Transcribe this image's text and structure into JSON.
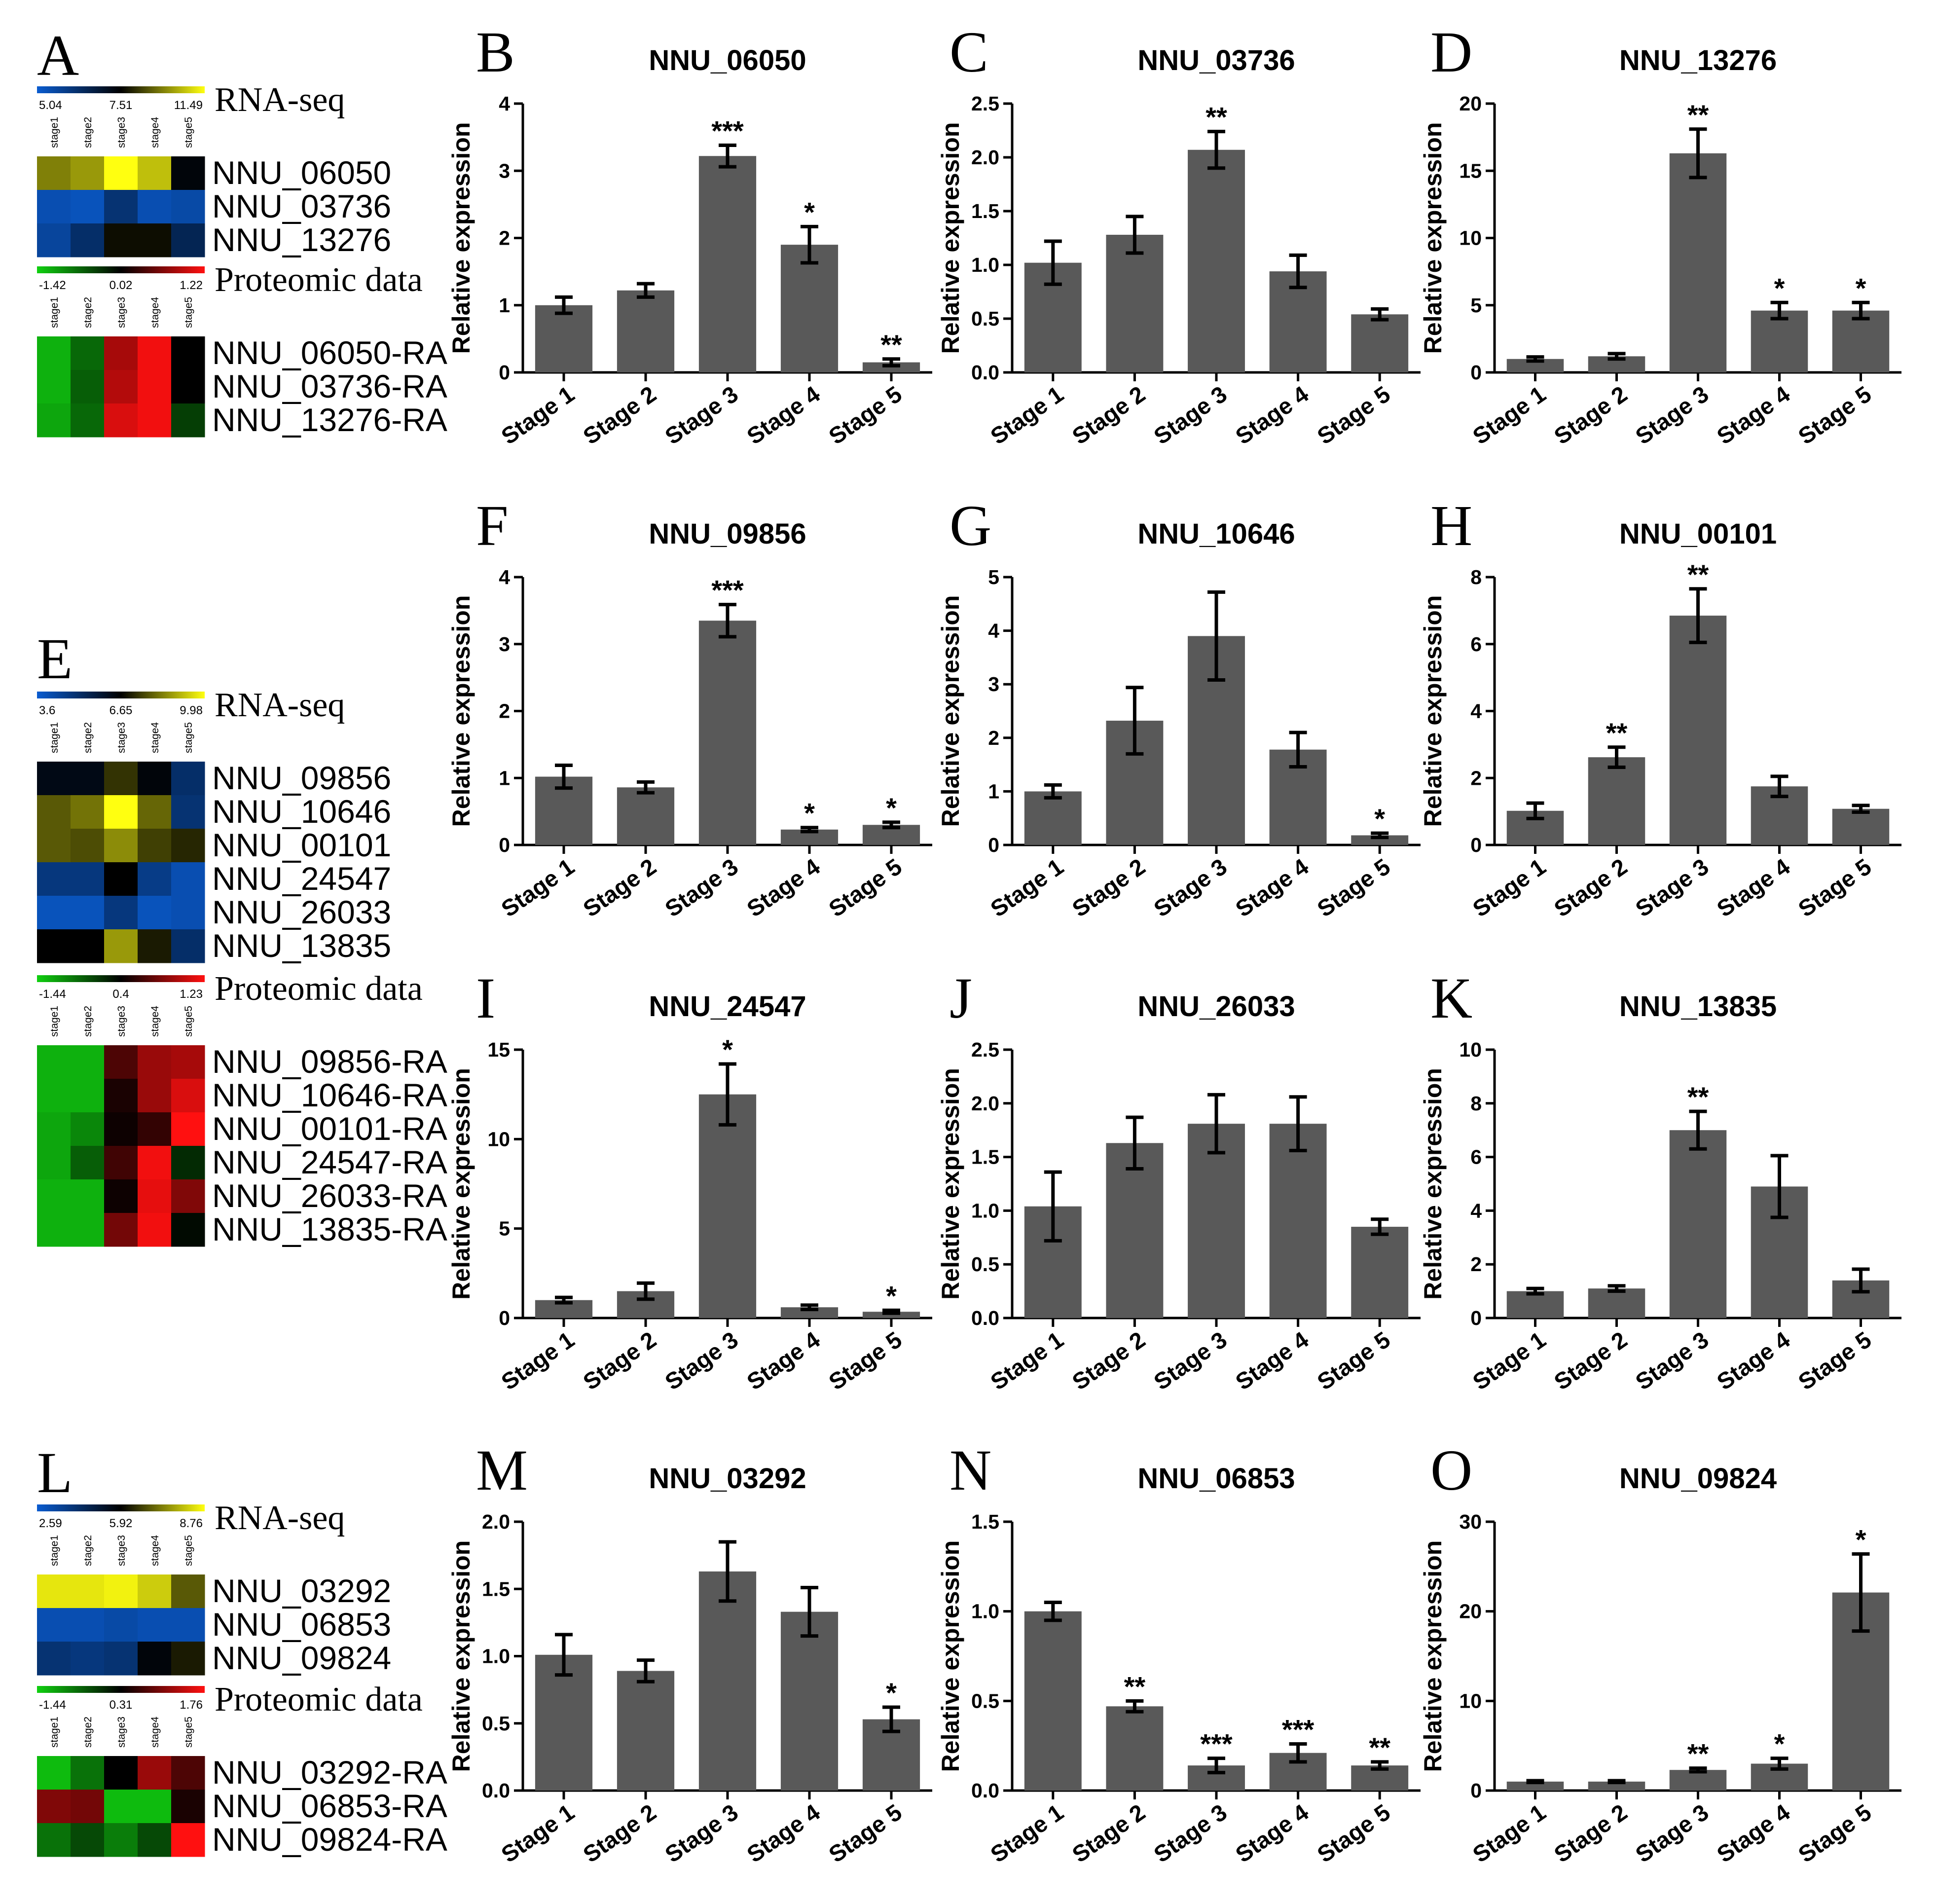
{
  "colors": {
    "bar": "#595959",
    "rna_low": "#0a5cd0",
    "rna_mid": "#000000",
    "rna_high": "#ffff10",
    "prot_low": "#10d010",
    "prot_mid": "#000000",
    "prot_high": "#ff1010"
  },
  "heatmaps": [
    {
      "id": "A",
      "rna": {
        "title": "RNA-seq",
        "scale": [
          "5.04",
          "7.51",
          "11.49"
        ],
        "cols": [
          "stage1",
          "stage2",
          "stage3",
          "stage4",
          "stage5"
        ],
        "rows": [
          "NNU_06050",
          "NNU_03736",
          "NNU_13276"
        ],
        "values": [
          [
            0.5,
            0.6,
            1.0,
            0.75,
            -0.05
          ],
          [
            -0.85,
            -0.9,
            -0.55,
            -0.85,
            -0.8
          ],
          [
            -0.75,
            -0.5,
            0.05,
            0.05,
            -0.4
          ]
        ]
      },
      "prot": {
        "title": "Proteomic data",
        "scale": [
          "-1.42",
          "0.02",
          "1.22"
        ],
        "cols": [
          "stage1",
          "stage2",
          "stage3",
          "stage4",
          "stage5"
        ],
        "rows": [
          "NNU_06050-RA",
          "NNU_03736-RA",
          "NNU_13276-RA"
        ],
        "values": [
          [
            -0.85,
            -0.5,
            0.65,
            0.95,
            0.0
          ],
          [
            -0.85,
            -0.45,
            0.7,
            0.95,
            0.0
          ],
          [
            -0.8,
            -0.5,
            0.85,
            0.95,
            -0.3
          ]
        ]
      }
    },
    {
      "id": "E",
      "rna": {
        "title": "RNA-seq",
        "scale": [
          "3.6",
          "6.65",
          "9.98"
        ],
        "cols": [
          "stage1",
          "stage2",
          "stage3",
          "stage4",
          "stage5"
        ],
        "rows": [
          "NNU_09856",
          "NNU_10646",
          "NNU_00101",
          "NNU_24547",
          "NNU_26033",
          "NNU_13835"
        ],
        "values": [
          [
            -0.1,
            -0.1,
            0.2,
            -0.05,
            -0.5
          ],
          [
            0.35,
            0.45,
            1.0,
            0.4,
            -0.55
          ],
          [
            0.35,
            0.3,
            0.55,
            0.25,
            0.15
          ],
          [
            -0.6,
            -0.6,
            0.0,
            -0.65,
            -0.85
          ],
          [
            -0.9,
            -0.9,
            -0.6,
            -0.9,
            -0.85
          ],
          [
            0.0,
            0.0,
            0.6,
            0.1,
            -0.5
          ]
        ]
      },
      "prot": {
        "title": "Proteomic data",
        "scale": [
          "-1.44",
          "0.4",
          "1.23"
        ],
        "cols": [
          "stage1",
          "stage2",
          "stage3",
          "stage4",
          "stage5"
        ],
        "rows": [
          "NNU_09856-RA",
          "NNU_10646-RA",
          "NNU_00101-RA",
          "NNU_24547-RA",
          "NNU_26033-RA",
          "NNU_13835-RA"
        ],
        "values": [
          [
            -0.85,
            -0.85,
            0.3,
            0.6,
            0.65
          ],
          [
            -0.85,
            -0.85,
            0.1,
            0.6,
            0.85
          ],
          [
            -0.8,
            -0.65,
            0.05,
            0.2,
            1.0
          ],
          [
            -0.8,
            -0.45,
            0.25,
            0.95,
            -0.2
          ],
          [
            -0.85,
            -0.85,
            0.05,
            0.9,
            0.5
          ],
          [
            -0.85,
            -0.85,
            0.45,
            0.95,
            -0.05
          ]
        ]
      }
    },
    {
      "id": "L",
      "rna": {
        "title": "RNA-seq",
        "scale": [
          "2.59",
          "5.92",
          "8.76"
        ],
        "cols": [
          "stage1",
          "stage2",
          "stage3",
          "stage4",
          "stage5"
        ],
        "rows": [
          "NNU_03292",
          "NNU_06853",
          "NNU_09824"
        ],
        "values": [
          [
            0.9,
            0.9,
            0.95,
            0.8,
            0.35
          ],
          [
            -0.85,
            -0.85,
            -0.8,
            -0.85,
            -0.85
          ],
          [
            -0.55,
            -0.6,
            -0.55,
            -0.05,
            0.1
          ]
        ]
      },
      "prot": {
        "title": "Proteomic data",
        "scale": [
          "-1.44",
          "0.31",
          "1.76"
        ],
        "cols": [
          "stage1",
          "stage2",
          "stage3",
          "stage4",
          "stage5"
        ],
        "rows": [
          "NNU_03292-RA",
          "NNU_06853-RA",
          "NNU_09824-RA"
        ],
        "values": [
          [
            -0.9,
            -0.55,
            0.0,
            0.6,
            0.3
          ],
          [
            0.5,
            0.45,
            -0.9,
            -0.9,
            0.1
          ],
          [
            -0.55,
            -0.35,
            -0.6,
            -0.35,
            1.0
          ]
        ]
      }
    }
  ],
  "chart_data": [
    {
      "id": "B",
      "type": "bar",
      "title": "NNU_06050",
      "ylabel": "Relative expression",
      "categories": [
        "Stage 1",
        "Stage 2",
        "Stage 3",
        "Stage 4",
        "Stage 5"
      ],
      "values": [
        1.0,
        1.22,
        3.22,
        1.9,
        0.15
      ],
      "errors": [
        0.12,
        0.1,
        0.16,
        0.27,
        0.05
      ],
      "significance": [
        "",
        "",
        "***",
        "*",
        "**"
      ],
      "ylim": [
        0,
        4
      ],
      "yticks": [
        "0",
        "1",
        "2",
        "3",
        "4"
      ]
    },
    {
      "id": "C",
      "type": "bar",
      "title": "NNU_03736",
      "ylabel": "Relative expression",
      "categories": [
        "Stage 1",
        "Stage 2",
        "Stage 3",
        "Stage 4",
        "Stage 5"
      ],
      "values": [
        1.02,
        1.28,
        2.07,
        0.94,
        0.54
      ],
      "errors": [
        0.2,
        0.17,
        0.17,
        0.15,
        0.05
      ],
      "significance": [
        "",
        "",
        "**",
        "",
        ""
      ],
      "ylim": [
        0,
        2.5
      ],
      "yticks": [
        "0.0",
        "0.5",
        "1.0",
        "1.5",
        "2.0",
        "2.5"
      ]
    },
    {
      "id": "D",
      "type": "bar",
      "title": "NNU_13276",
      "ylabel": "Relative expression",
      "categories": [
        "Stage 1",
        "Stage 2",
        "Stage 3",
        "Stage 4",
        "Stage 5"
      ],
      "values": [
        1.0,
        1.2,
        16.3,
        4.6,
        4.6
      ],
      "errors": [
        0.15,
        0.2,
        1.8,
        0.6,
        0.6
      ],
      "significance": [
        "",
        "",
        "**",
        "*",
        "*"
      ],
      "ylim": [
        0,
        20
      ],
      "yticks": [
        "0",
        "5",
        "10",
        "15",
        "20"
      ]
    },
    {
      "id": "F",
      "type": "bar",
      "title": "NNU_09856",
      "ylabel": "Relative expression",
      "categories": [
        "Stage 1",
        "Stage 2",
        "Stage 3",
        "Stage 4",
        "Stage 5"
      ],
      "values": [
        1.02,
        0.86,
        3.35,
        0.23,
        0.3
      ],
      "errors": [
        0.17,
        0.08,
        0.24,
        0.03,
        0.04
      ],
      "significance": [
        "",
        "",
        "***",
        "*",
        "*"
      ],
      "ylim": [
        0,
        4
      ],
      "yticks": [
        "0",
        "1",
        "2",
        "3",
        "4"
      ]
    },
    {
      "id": "G",
      "type": "bar",
      "title": "NNU_10646",
      "ylabel": "Relative expression",
      "categories": [
        "Stage 1",
        "Stage 2",
        "Stage 3",
        "Stage 4",
        "Stage 5"
      ],
      "values": [
        1.0,
        2.32,
        3.9,
        1.78,
        0.18
      ],
      "errors": [
        0.12,
        0.62,
        0.82,
        0.32,
        0.04
      ],
      "significance": [
        "",
        "",
        "",
        "",
        "*"
      ],
      "ylim": [
        0,
        5
      ],
      "yticks": [
        "0",
        "1",
        "2",
        "3",
        "4",
        "5"
      ]
    },
    {
      "id": "H",
      "type": "bar",
      "title": "NNU_00101",
      "ylabel": "Relative expression",
      "categories": [
        "Stage 1",
        "Stage 2",
        "Stage 3",
        "Stage 4",
        "Stage 5"
      ],
      "values": [
        1.02,
        2.62,
        6.85,
        1.75,
        1.08
      ],
      "errors": [
        0.23,
        0.3,
        0.8,
        0.3,
        0.1
      ],
      "significance": [
        "",
        "**",
        "**",
        "",
        ""
      ],
      "ylim": [
        0,
        8
      ],
      "yticks": [
        "0",
        "2",
        "4",
        "6",
        "8"
      ]
    },
    {
      "id": "I",
      "type": "bar",
      "title": "NNU_24547",
      "ylabel": "Relative expression",
      "categories": [
        "Stage 1",
        "Stage 2",
        "Stage 3",
        "Stage 4",
        "Stage 5"
      ],
      "values": [
        1.0,
        1.5,
        12.5,
        0.6,
        0.35
      ],
      "errors": [
        0.15,
        0.45,
        1.7,
        0.12,
        0.08
      ],
      "significance": [
        "",
        "",
        "*",
        "",
        "*"
      ],
      "ylim": [
        0,
        15
      ],
      "yticks": [
        "0",
        "5",
        "10",
        "15"
      ]
    },
    {
      "id": "J",
      "type": "bar",
      "title": "NNU_26033",
      "ylabel": "Relative expression",
      "categories": [
        "Stage 1",
        "Stage 2",
        "Stage 3",
        "Stage 4",
        "Stage 5"
      ],
      "values": [
        1.04,
        1.63,
        1.81,
        1.81,
        0.85
      ],
      "errors": [
        0.32,
        0.24,
        0.27,
        0.25,
        0.07
      ],
      "significance": [
        "",
        "",
        "",
        "",
        ""
      ],
      "ylim": [
        0,
        2.5
      ],
      "yticks": [
        "0.0",
        "0.5",
        "1.0",
        "1.5",
        "2.0",
        "2.5"
      ]
    },
    {
      "id": "K",
      "type": "bar",
      "title": "NNU_13835",
      "ylabel": "Relative expression",
      "categories": [
        "Stage 1",
        "Stage 2",
        "Stage 3",
        "Stage 4",
        "Stage 5"
      ],
      "values": [
        1.0,
        1.1,
        7.0,
        4.9,
        1.4
      ],
      "errors": [
        0.1,
        0.1,
        0.7,
        1.15,
        0.42
      ],
      "significance": [
        "",
        "",
        "**",
        "",
        ""
      ],
      "ylim": [
        0,
        10
      ],
      "yticks": [
        "0",
        "2",
        "4",
        "6",
        "8",
        "10"
      ]
    },
    {
      "id": "M",
      "type": "bar",
      "title": "NNU_03292",
      "ylabel": "Relative expression",
      "categories": [
        "Stage 1",
        "Stage 2",
        "Stage 3",
        "Stage 4",
        "Stage 5"
      ],
      "values": [
        1.01,
        0.89,
        1.63,
        1.33,
        0.53
      ],
      "errors": [
        0.15,
        0.08,
        0.22,
        0.18,
        0.09
      ],
      "significance": [
        "",
        "",
        "",
        "",
        "*"
      ],
      "ylim": [
        0,
        2.0
      ],
      "yticks": [
        "0.0",
        "0.5",
        "1.0",
        "1.5",
        "2.0"
      ]
    },
    {
      "id": "N",
      "type": "bar",
      "title": "NNU_06853",
      "ylabel": "Relative expression",
      "categories": [
        "Stage 1",
        "Stage 2",
        "Stage 3",
        "Stage 4",
        "Stage 5"
      ],
      "values": [
        1.0,
        0.47,
        0.14,
        0.21,
        0.14
      ],
      "errors": [
        0.05,
        0.03,
        0.04,
        0.05,
        0.02
      ],
      "significance": [
        "",
        "**",
        "***",
        "***",
        "**"
      ],
      "ylim": [
        0,
        1.5
      ],
      "yticks": [
        "0.0",
        "0.5",
        "1.0",
        "1.5"
      ]
    },
    {
      "id": "O",
      "type": "bar",
      "title": "NNU_09824",
      "ylabel": "Relative expression",
      "categories": [
        "Stage 1",
        "Stage 2",
        "Stage 3",
        "Stage 4",
        "Stage 5"
      ],
      "values": [
        1.0,
        1.0,
        2.3,
        3.0,
        22.1
      ],
      "errors": [
        0.1,
        0.1,
        0.2,
        0.6,
        4.3
      ],
      "significance": [
        "",
        "",
        "**",
        "*",
        "*"
      ],
      "ylim": [
        0,
        30
      ],
      "yticks": [
        "0",
        "10",
        "20",
        "30"
      ]
    }
  ]
}
